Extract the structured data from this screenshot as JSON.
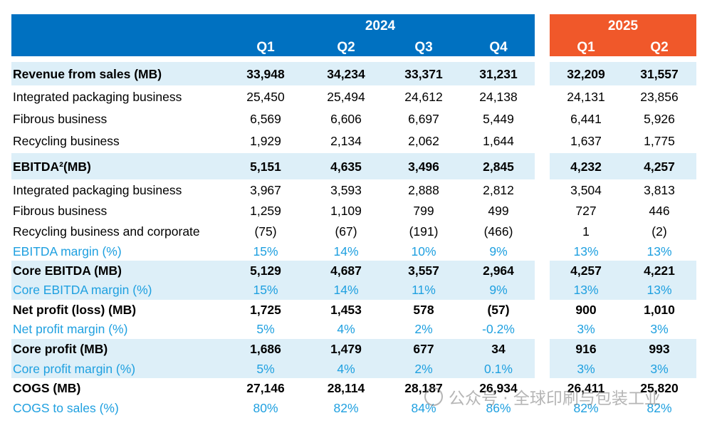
{
  "header": {
    "year_2024": "2024",
    "year_2025": "2025",
    "quarters_2024": [
      "Q1",
      "Q2",
      "Q3",
      "Q4"
    ],
    "quarters_2025": [
      "Q1",
      "Q2"
    ]
  },
  "rows": [
    {
      "label": "Revenue from sales (MB)",
      "style": "bold",
      "shaded": true,
      "v2024": [
        "33,948",
        "34,234",
        "33,371",
        "31,231"
      ],
      "v2025": [
        "32,209",
        "31,557"
      ]
    },
    {
      "label": "Integrated packaging business",
      "style": "normal",
      "shaded": false,
      "v2024": [
        "25,450",
        "25,494",
        "24,612",
        "24,138"
      ],
      "v2025": [
        "24,131",
        "23,856"
      ]
    },
    {
      "label": "Fibrous business",
      "style": "normal",
      "shaded": false,
      "v2024": [
        "6,569",
        "6,606",
        "6,697",
        "5,449"
      ],
      "v2025": [
        "6,441",
        "5,926"
      ]
    },
    {
      "label": "Recycling business",
      "style": "normal",
      "shaded": false,
      "v2024": [
        "1,929",
        "2,134",
        "2,062",
        "1,644"
      ],
      "v2025": [
        "1,637",
        "1,775"
      ]
    },
    {
      "label": "EBITDA²(MB)",
      "style": "bold",
      "shaded": true,
      "v2024": [
        "5,151",
        "4,635",
        "3,496",
        "2,845"
      ],
      "v2025": [
        "4,232",
        "4,257"
      ]
    },
    {
      "label": "Integrated packaging business",
      "style": "normal",
      "shaded": false,
      "v2024": [
        "3,967",
        "3,593",
        "2,888",
        "2,812"
      ],
      "v2025": [
        "3,504",
        "3,813"
      ]
    },
    {
      "label": "Fibrous business",
      "style": "normal",
      "shaded": false,
      "v2024": [
        "1,259",
        "1,109",
        "799",
        "499"
      ],
      "v2025": [
        "727",
        "446"
      ]
    },
    {
      "label": "Recycling business and corporate",
      "style": "normal",
      "shaded": false,
      "v2024": [
        "(75)",
        "(67)",
        "(191)",
        "(466)"
      ],
      "v2025": [
        "1",
        "(2)"
      ]
    },
    {
      "label": "EBITDA margin (%)",
      "style": "margin",
      "shaded": false,
      "v2024": [
        "15%",
        "14%",
        "10%",
        "9%"
      ],
      "v2025": [
        "13%",
        "13%"
      ]
    },
    {
      "label": "Core EBITDA (MB)",
      "style": "bold",
      "shaded": true,
      "v2024": [
        "5,129",
        "4,687",
        "3,557",
        "2,964"
      ],
      "v2025": [
        "4,257",
        "4,221"
      ]
    },
    {
      "label": "Core EBITDA margin (%)",
      "style": "margin",
      "shaded": true,
      "v2024": [
        "15%",
        "14%",
        "11%",
        "9%"
      ],
      "v2025": [
        "13%",
        "13%"
      ]
    },
    {
      "label": "Net profit (loss) (MB)",
      "style": "bold",
      "shaded": false,
      "v2024": [
        "1,725",
        "1,453",
        "578",
        "(57)"
      ],
      "v2025": [
        "900",
        "1,010"
      ]
    },
    {
      "label": "Net profit margin (%)",
      "style": "margin",
      "shaded": false,
      "v2024": [
        "5%",
        "4%",
        "2%",
        "-0.2%"
      ],
      "v2025": [
        "3%",
        "3%"
      ]
    },
    {
      "label": "Core profit (MB)",
      "style": "bold",
      "shaded": true,
      "v2024": [
        "1,686",
        "1,479",
        "677",
        "34"
      ],
      "v2025": [
        "916",
        "993"
      ]
    },
    {
      "label": "Core profit margin (%)",
      "style": "margin",
      "shaded": true,
      "v2024": [
        "5%",
        "4%",
        "2%",
        "0.1%"
      ],
      "v2025": [
        "3%",
        "3%"
      ]
    },
    {
      "label": "COGS (MB)",
      "style": "bold",
      "shaded": false,
      "v2024": [
        "27,146",
        "28,114",
        "28,187",
        "26,934"
      ],
      "v2025": [
        "26,411",
        "25,820"
      ]
    },
    {
      "label": "COGS to sales (%)",
      "style": "margin",
      "shaded": false,
      "v2024": [
        "80%",
        "82%",
        "84%",
        "86%"
      ],
      "v2025": [
        "82%",
        "82%"
      ]
    }
  ],
  "colors": {
    "header_2024": "#0071C1",
    "header_2025": "#F0582A",
    "row_shade": "#DDEFF8",
    "margin_text": "#1FA0E0"
  },
  "watermark": {
    "icon": "wechat-icon",
    "text": "公众号 · 全球印刷与包装工业"
  }
}
